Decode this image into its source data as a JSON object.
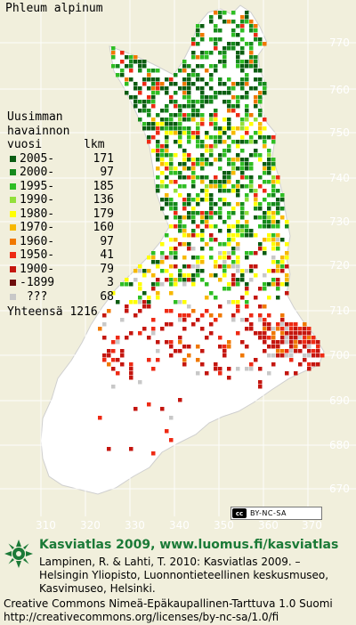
{
  "title": "Phleum alpinum",
  "legend": {
    "header_lines": [
      "Uusimman",
      "havainnon",
      "vuosi      lkm"
    ],
    "entries": [
      {
        "label": "2005-",
        "count": "171",
        "color": "#0b5d12"
      },
      {
        "label": "2000-",
        "count": "97",
        "color": "#168a1c"
      },
      {
        "label": "1995-",
        "count": "185",
        "color": "#2fbe24"
      },
      {
        "label": "1990-",
        "count": "136",
        "color": "#93e03a"
      },
      {
        "label": "1980-",
        "count": "179",
        "color": "#ffff00"
      },
      {
        "label": "1970-",
        "count": "160",
        "color": "#f7b800"
      },
      {
        "label": "1960-",
        "count": "97",
        "color": "#f07800"
      },
      {
        "label": "1950-",
        "count": "41",
        "color": "#ee2a14"
      },
      {
        "label": "1900-",
        "count": "79",
        "color": "#c4160f"
      },
      {
        "label": "-1899",
        "count": "3",
        "color": "#6e0d0d"
      },
      {
        "label": " ???",
        "count": "68",
        "color": "#c8c8c8"
      }
    ],
    "total_label": "Yhteensä",
    "total_value": "1216"
  },
  "grid_y_labels": [
    "770",
    "760",
    "750",
    "740",
    "730",
    "720",
    "710",
    "700",
    "690",
    "680",
    "670"
  ],
  "grid_x_labels": [
    "310",
    "320",
    "330",
    "340",
    "350",
    "360",
    "370"
  ],
  "cc_badge": "BY-NC-SA",
  "atlas_line": "Kasviatlas 2009, www.luomus.fi/kasviatlas",
  "citation": "Lampinen, R. & Lahti, T. 2010: Kasviatlas 2009. – Helsingin Yliopisto, Luonnontieteellinen keskusmuseo, Kasvimuseo, Helsinki.",
  "license_line1": "Creative Commons Nimeä-Epäkaupallinen-Tarttuva 1.0 Suomi",
  "license_line2": "http://creativecommons.org/licenses/by-nc-sa/1.0/fi",
  "colors": {
    "background": "#f1efdc",
    "land": "#ffffff",
    "land_outline": "#cfcfcf",
    "grid": "#ffffff",
    "atlas_green": "#1b7a37"
  }
}
